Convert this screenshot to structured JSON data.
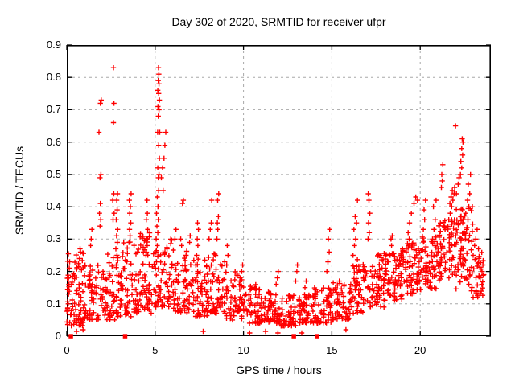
{
  "title": "Day 302 of 2020, SRMTID for receiver ufpr",
  "colors": {
    "marker": "#ff0000",
    "grid": "#a8a8a8",
    "frame": "#000000",
    "background": "#ffffff",
    "text": "#000000"
  },
  "chart_data": {
    "type": "scatter",
    "title": "Day 302 of 2020, SRMTID for receiver ufpr",
    "xlabel": "GPS time / hours",
    "ylabel": "SRMTID / TECUs",
    "xlim": [
      0,
      24
    ],
    "ylim": [
      0,
      0.9
    ],
    "xticks": [
      0,
      5,
      10,
      15,
      20
    ],
    "xtick_labels": [
      "0",
      "5",
      "10",
      "15",
      "20"
    ],
    "yticks": [
      0,
      0.1,
      0.2,
      0.3,
      0.4,
      0.5,
      0.6,
      0.7,
      0.8,
      0.9
    ],
    "ytick_labels": [
      "0",
      "0.1",
      "0.2",
      "0.3",
      "0.4",
      "0.5",
      "0.6",
      "0.7",
      "0.8",
      "0.9"
    ],
    "grid": true,
    "legend": "none",
    "series": [
      {
        "name": "srmtid-arcs",
        "marker": "plus",
        "color": "#ff0000",
        "points": [
          [
            0.08,
            0.1
          ],
          [
            0.1,
            0.13
          ],
          [
            0.12,
            0.16
          ],
          [
            0.1,
            0.18
          ],
          [
            0.14,
            0.21
          ],
          [
            0.16,
            0.23
          ],
          [
            0.05,
            0.08
          ],
          [
            0.72,
            0.24
          ],
          [
            0.78,
            0.26
          ],
          [
            0.75,
            0.27
          ],
          [
            1.35,
            0.28
          ],
          [
            1.38,
            0.3
          ],
          [
            1.42,
            0.33
          ],
          [
            1.88,
            0.34
          ],
          [
            1.92,
            0.36
          ],
          [
            1.85,
            0.38
          ],
          [
            1.9,
            0.41
          ],
          [
            1.88,
            0.49
          ],
          [
            1.93,
            0.5
          ],
          [
            1.82,
            0.63
          ],
          [
            1.9,
            0.72
          ],
          [
            1.95,
            0.73
          ],
          [
            2.62,
            0.36
          ],
          [
            2.68,
            0.38
          ],
          [
            2.6,
            0.42
          ],
          [
            2.66,
            0.44
          ],
          [
            2.64,
            0.66
          ],
          [
            2.67,
            0.72
          ],
          [
            2.64,
            0.83
          ],
          [
            2.8,
            0.22
          ],
          [
            2.84,
            0.25
          ],
          [
            2.78,
            0.27
          ],
          [
            2.86,
            0.29
          ],
          [
            2.82,
            0.31
          ],
          [
            2.88,
            0.33
          ],
          [
            2.8,
            0.36
          ],
          [
            2.85,
            0.39
          ],
          [
            2.83,
            0.42
          ],
          [
            2.87,
            0.44
          ],
          [
            3.52,
            0.29
          ],
          [
            3.58,
            0.31
          ],
          [
            3.55,
            0.33
          ],
          [
            3.62,
            0.35
          ],
          [
            3.56,
            0.38
          ],
          [
            3.6,
            0.4
          ],
          [
            3.54,
            0.42
          ],
          [
            3.64,
            0.44
          ],
          [
            4.48,
            0.25
          ],
          [
            4.55,
            0.28
          ],
          [
            4.52,
            0.3
          ],
          [
            4.58,
            0.33
          ],
          [
            4.5,
            0.36
          ],
          [
            4.56,
            0.38
          ],
          [
            4.54,
            0.42
          ],
          [
            5.02,
            0.21
          ],
          [
            5.08,
            0.23
          ],
          [
            5.05,
            0.26
          ],
          [
            5.12,
            0.28
          ],
          [
            5.06,
            0.3
          ],
          [
            5.15,
            0.32
          ],
          [
            5.1,
            0.34
          ],
          [
            5.18,
            0.36
          ],
          [
            5.08,
            0.38
          ],
          [
            5.16,
            0.4
          ],
          [
            5.12,
            0.43
          ],
          [
            5.2,
            0.45
          ],
          [
            5.18,
            0.49
          ],
          [
            5.22,
            0.5
          ],
          [
            5.15,
            0.52
          ],
          [
            5.24,
            0.55
          ],
          [
            5.2,
            0.59
          ],
          [
            5.14,
            0.63
          ],
          [
            5.26,
            0.63
          ],
          [
            5.18,
            0.68
          ],
          [
            5.22,
            0.7
          ],
          [
            5.16,
            0.71
          ],
          [
            5.24,
            0.73
          ],
          [
            5.2,
            0.75
          ],
          [
            5.15,
            0.76
          ],
          [
            5.22,
            0.78
          ],
          [
            5.18,
            0.79
          ],
          [
            5.21,
            0.81
          ],
          [
            5.19,
            0.83
          ],
          [
            5.35,
            0.49
          ],
          [
            5.42,
            0.52
          ],
          [
            5.5,
            0.55
          ],
          [
            5.55,
            0.59
          ],
          [
            5.6,
            0.63
          ],
          [
            5.45,
            0.45
          ],
          [
            6.12,
            0.3
          ],
          [
            6.18,
            0.33
          ],
          [
            6.45,
            0.3
          ],
          [
            6.5,
            0.28
          ],
          [
            6.55,
            0.41
          ],
          [
            6.6,
            0.42
          ],
          [
            6.75,
            0.25
          ],
          [
            6.95,
            0.29
          ],
          [
            6.98,
            0.31
          ],
          [
            7.3,
            0.22
          ],
          [
            7.35,
            0.25
          ],
          [
            7.42,
            0.28
          ],
          [
            7.38,
            0.3
          ],
          [
            7.45,
            0.33
          ],
          [
            7.4,
            0.35
          ],
          [
            8.05,
            0.3
          ],
          [
            8.12,
            0.33
          ],
          [
            8.18,
            0.35
          ],
          [
            8.2,
            0.42
          ],
          [
            8.5,
            0.3
          ],
          [
            8.55,
            0.33
          ],
          [
            8.52,
            0.35
          ],
          [
            8.58,
            0.37
          ],
          [
            8.54,
            0.42
          ],
          [
            8.6,
            0.44
          ],
          [
            9.05,
            0.22
          ],
          [
            9.12,
            0.25
          ],
          [
            9.08,
            0.28
          ],
          [
            9.82,
            0.18
          ],
          [
            9.9,
            0.2
          ],
          [
            9.95,
            0.22
          ],
          [
            11.85,
            0.16
          ],
          [
            11.92,
            0.18
          ],
          [
            11.97,
            0.2
          ],
          [
            12.95,
            0.17
          ],
          [
            13.02,
            0.2
          ],
          [
            13.05,
            0.22
          ],
          [
            13.48,
            0.15
          ],
          [
            13.55,
            0.17
          ],
          [
            14.72,
            0.2
          ],
          [
            14.78,
            0.23
          ],
          [
            14.85,
            0.26
          ],
          [
            14.8,
            0.3
          ],
          [
            14.88,
            0.33
          ],
          [
            16.2,
            0.25
          ],
          [
            16.28,
            0.28
          ],
          [
            16.35,
            0.3
          ],
          [
            16.25,
            0.33
          ],
          [
            16.4,
            0.35
          ],
          [
            16.32,
            0.37
          ],
          [
            16.45,
            0.42
          ],
          [
            17.05,
            0.3
          ],
          [
            17.12,
            0.32
          ],
          [
            17.08,
            0.35
          ],
          [
            17.15,
            0.38
          ],
          [
            17.1,
            0.42
          ],
          [
            17.06,
            0.44
          ],
          [
            18.3,
            0.25
          ],
          [
            18.38,
            0.28
          ],
          [
            18.35,
            0.3
          ],
          [
            18.42,
            0.31
          ],
          [
            19.32,
            0.32
          ],
          [
            19.4,
            0.35
          ],
          [
            19.5,
            0.38
          ],
          [
            19.65,
            0.41
          ],
          [
            19.75,
            0.43
          ],
          [
            19.85,
            0.42
          ],
          [
            19.38,
            0.3
          ],
          [
            20.18,
            0.33
          ],
          [
            20.25,
            0.36
          ],
          [
            20.22,
            0.39
          ],
          [
            20.3,
            0.42
          ],
          [
            20.7,
            0.3
          ],
          [
            20.78,
            0.33
          ],
          [
            20.85,
            0.36
          ],
          [
            20.75,
            0.4
          ],
          [
            20.9,
            0.42
          ],
          [
            21.2,
            0.46
          ],
          [
            21.25,
            0.48
          ],
          [
            21.22,
            0.5
          ],
          [
            21.28,
            0.53
          ],
          [
            21.62,
            0.36
          ],
          [
            21.7,
            0.38
          ],
          [
            21.78,
            0.4
          ],
          [
            21.68,
            0.41
          ],
          [
            21.85,
            0.42
          ],
          [
            21.75,
            0.43
          ],
          [
            21.92,
            0.44
          ],
          [
            21.82,
            0.45
          ],
          [
            21.95,
            0.46
          ],
          [
            22.05,
            0.44
          ],
          [
            22.0,
            0.65
          ],
          [
            22.15,
            0.47
          ],
          [
            22.2,
            0.49
          ],
          [
            22.28,
            0.5
          ],
          [
            22.35,
            0.52
          ],
          [
            22.3,
            0.54
          ],
          [
            22.4,
            0.56
          ],
          [
            22.35,
            0.58
          ],
          [
            22.42,
            0.6
          ],
          [
            22.38,
            0.61
          ],
          [
            22.55,
            0.3
          ],
          [
            22.62,
            0.33
          ],
          [
            22.7,
            0.36
          ],
          [
            22.58,
            0.38
          ],
          [
            22.75,
            0.4
          ],
          [
            22.68,
            0.42
          ],
          [
            22.8,
            0.44
          ],
          [
            22.72,
            0.47
          ],
          [
            22.85,
            0.5
          ],
          [
            22.6,
            0.18
          ],
          [
            22.75,
            0.16
          ],
          [
            22.9,
            0.14
          ],
          [
            23.0,
            0.12
          ],
          [
            23.0,
            0.25
          ],
          [
            23.08,
            0.28
          ],
          [
            23.15,
            0.3
          ],
          [
            23.22,
            0.33
          ],
          [
            23.3,
            0.27
          ],
          [
            23.4,
            0.18
          ],
          [
            23.5,
            0.2
          ],
          [
            23.55,
            0.22
          ],
          [
            23.6,
            0.19
          ],
          [
            0.55,
            0.015
          ],
          [
            0.92,
            0.02
          ],
          [
            7.72,
            0.015
          ],
          [
            10.35,
            0.01
          ],
          [
            11.25,
            0.015
          ],
          [
            11.95,
            0.01
          ],
          [
            13.3,
            0.01
          ],
          [
            15.8,
            0.02
          ]
        ]
      },
      {
        "name": "zero-flags",
        "marker": "square",
        "color": "#ff0000",
        "points": [
          [
            0.23,
            0
          ],
          [
            3.3,
            0
          ],
          [
            12.85,
            0
          ],
          [
            14.15,
            0
          ]
        ]
      }
    ],
    "noise": {
      "seed": 302,
      "marker": "plus",
      "color": "#ff0000",
      "bands": [
        [
          0.0,
          1.0,
          0.03,
          0.26,
          70,
          1.7
        ],
        [
          1.0,
          2.0,
          0.05,
          0.22,
          60,
          1.5
        ],
        [
          2.0,
          3.0,
          0.05,
          0.26,
          60,
          1.5
        ],
        [
          3.0,
          4.0,
          0.06,
          0.3,
          65,
          1.5
        ],
        [
          4.0,
          5.0,
          0.07,
          0.32,
          65,
          1.4
        ],
        [
          5.0,
          6.0,
          0.09,
          0.3,
          60,
          1.3
        ],
        [
          6.0,
          7.0,
          0.07,
          0.27,
          60,
          1.4
        ],
        [
          7.0,
          8.0,
          0.06,
          0.24,
          60,
          1.5
        ],
        [
          8.0,
          9.0,
          0.07,
          0.26,
          60,
          1.5
        ],
        [
          9.0,
          10.0,
          0.05,
          0.2,
          55,
          1.5
        ],
        [
          10.0,
          11.0,
          0.04,
          0.16,
          55,
          1.6
        ],
        [
          11.0,
          12.0,
          0.04,
          0.14,
          55,
          1.6
        ],
        [
          12.0,
          13.0,
          0.03,
          0.13,
          55,
          1.6
        ],
        [
          13.0,
          14.0,
          0.04,
          0.13,
          55,
          1.6
        ],
        [
          14.0,
          15.0,
          0.04,
          0.15,
          55,
          1.6
        ],
        [
          15.0,
          16.0,
          0.05,
          0.17,
          55,
          1.5
        ],
        [
          16.0,
          17.0,
          0.07,
          0.24,
          60,
          1.3
        ],
        [
          17.0,
          18.0,
          0.09,
          0.26,
          60,
          1.2
        ],
        [
          18.0,
          19.0,
          0.11,
          0.26,
          60,
          1.1
        ],
        [
          19.0,
          20.0,
          0.13,
          0.29,
          65,
          1.0
        ],
        [
          20.0,
          21.0,
          0.14,
          0.31,
          65,
          1.0
        ],
        [
          21.0,
          22.0,
          0.17,
          0.36,
          70,
          0.95
        ],
        [
          22.0,
          23.0,
          0.14,
          0.4,
          70,
          0.95
        ],
        [
          23.0,
          23.6,
          0.12,
          0.26,
          30,
          1.1
        ]
      ]
    }
  }
}
